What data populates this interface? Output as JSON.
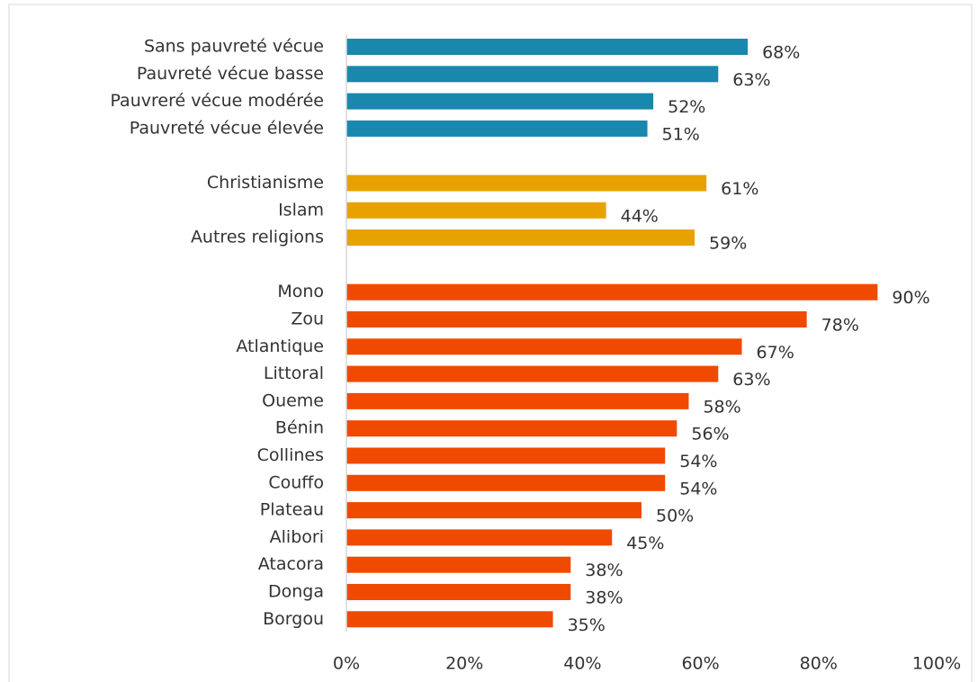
{
  "chart_data": {
    "type": "bar",
    "orientation": "horizontal",
    "groups": [
      {
        "color": "#1a87ad",
        "categories": [
          "Sans pauvreté vécue",
          "Pauvreté vécue basse",
          "Pauvreré vécue modérée",
          "Pauvreté vécue élevée"
        ],
        "values": [
          68,
          63,
          52,
          51
        ],
        "value_labels": [
          "68%",
          "63%",
          "52%",
          "51%"
        ]
      },
      {
        "color": "#e8a200",
        "categories": [
          "Christianisme",
          "Islam",
          "Autres religions"
        ],
        "values": [
          61,
          44,
          59
        ],
        "value_labels": [
          "61%",
          "44%",
          "59%"
        ]
      },
      {
        "color": "#f04a00",
        "categories": [
          "Mono",
          "Zou",
          "Atlantique",
          "Littoral",
          "Oueme",
          "Bénin",
          "Collines",
          "Couffo",
          "Plateau",
          "Alibori",
          "Atacora",
          "Donga",
          "Borgou"
        ],
        "values": [
          90,
          78,
          67,
          63,
          58,
          56,
          54,
          54,
          50,
          45,
          38,
          38,
          35
        ],
        "value_labels": [
          "90%",
          "78%",
          "67%",
          "63%",
          "58%",
          "56%",
          "54%",
          "54%",
          "50%",
          "45%",
          "38%",
          "38%",
          "35%"
        ]
      }
    ],
    "xlim": [
      0,
      100
    ],
    "xticks": [
      {
        "value": 0,
        "label": "0%"
      },
      {
        "value": 20,
        "label": "20%"
      },
      {
        "value": 40,
        "label": "40%"
      },
      {
        "value": 60,
        "label": "60%"
      },
      {
        "value": 80,
        "label": "80%"
      },
      {
        "value": 100,
        "label": "100%"
      }
    ],
    "grid": false
  }
}
